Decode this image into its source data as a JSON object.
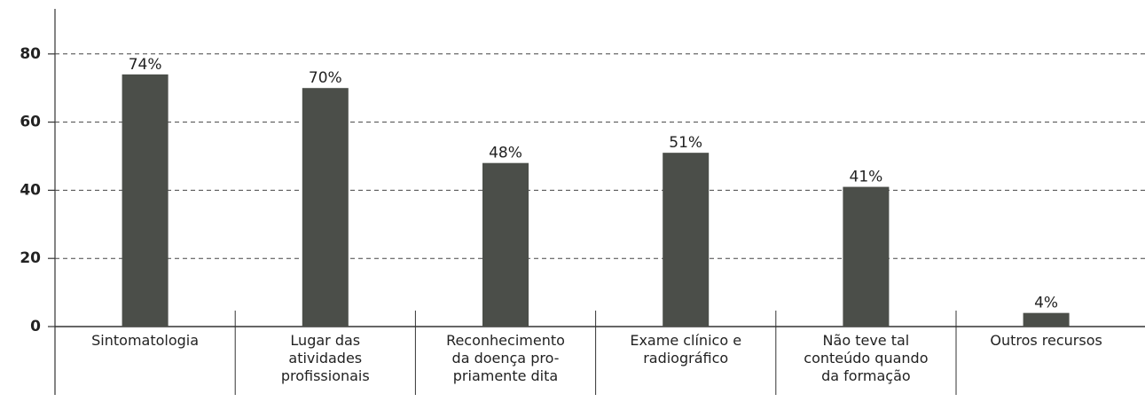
{
  "chart_data": {
    "type": "bar",
    "categories": [
      "Sintomatologia",
      "Lugar das\natividades\nprofissionais",
      "Reconhecimento\nda doença pro-\npriamente dita",
      "Exame clínico e\nradiográfico",
      "Não teve tal\nconteúdo quando\nda formação",
      "Outros recursos"
    ],
    "values": [
      74,
      70,
      48,
      51,
      41,
      4
    ],
    "value_labels": [
      "74%",
      "70%",
      "48%",
      "51%",
      "41%",
      "4%"
    ],
    "color": "#4b4e49",
    "ylim": [
      0,
      90
    ],
    "yticks": [
      0,
      20,
      40,
      60,
      80
    ],
    "grid": true
  }
}
